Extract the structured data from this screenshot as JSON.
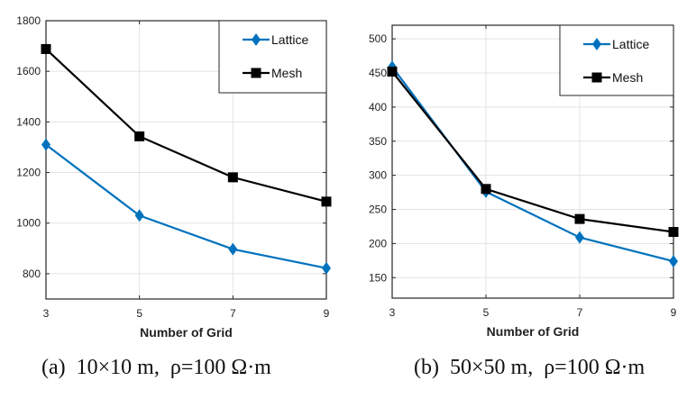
{
  "colors": {
    "lattice": "#0072bd",
    "mesh": "#000000",
    "grid": "#e3e3e3",
    "axis": "#262626"
  },
  "chart_data": [
    {
      "type": "line",
      "id": "a",
      "caption": "(a)  10×10 m,  ρ=100 Ω·m",
      "xlabel": "Number of Grid",
      "ylabel": "",
      "x": [
        3,
        5,
        7,
        9
      ],
      "xlim": [
        3,
        9
      ],
      "xticks": [
        "3",
        "5",
        "7",
        "9"
      ],
      "ylim": [
        700,
        1800
      ],
      "yticks": [
        800,
        1000,
        1200,
        1400,
        1600,
        1800
      ],
      "grid": true,
      "legend": "top-right",
      "series": [
        {
          "name": "Lattice",
          "marker": "diamond",
          "values": [
            1310,
            1030,
            897,
            822
          ]
        },
        {
          "name": "Mesh",
          "marker": "square",
          "values": [
            1688,
            1343,
            1181,
            1085
          ]
        }
      ]
    },
    {
      "type": "line",
      "id": "b",
      "caption": "(b)  50×50 m,  ρ=100 Ω·m",
      "xlabel": "Number of Grid",
      "ylabel": "",
      "x": [
        3,
        5,
        7,
        9
      ],
      "xlim": [
        3,
        9
      ],
      "xticks": [
        "3",
        "5",
        "7",
        "9"
      ],
      "ylim": [
        120,
        520
      ],
      "yticks": [
        150,
        200,
        250,
        300,
        350,
        400,
        450,
        500
      ],
      "grid": true,
      "legend": "top-right",
      "series": [
        {
          "name": "Lattice",
          "marker": "diamond",
          "values": [
            459,
            276,
            209,
            174
          ]
        },
        {
          "name": "Mesh",
          "marker": "square",
          "values": [
            452,
            280,
            236,
            217
          ]
        }
      ]
    }
  ]
}
